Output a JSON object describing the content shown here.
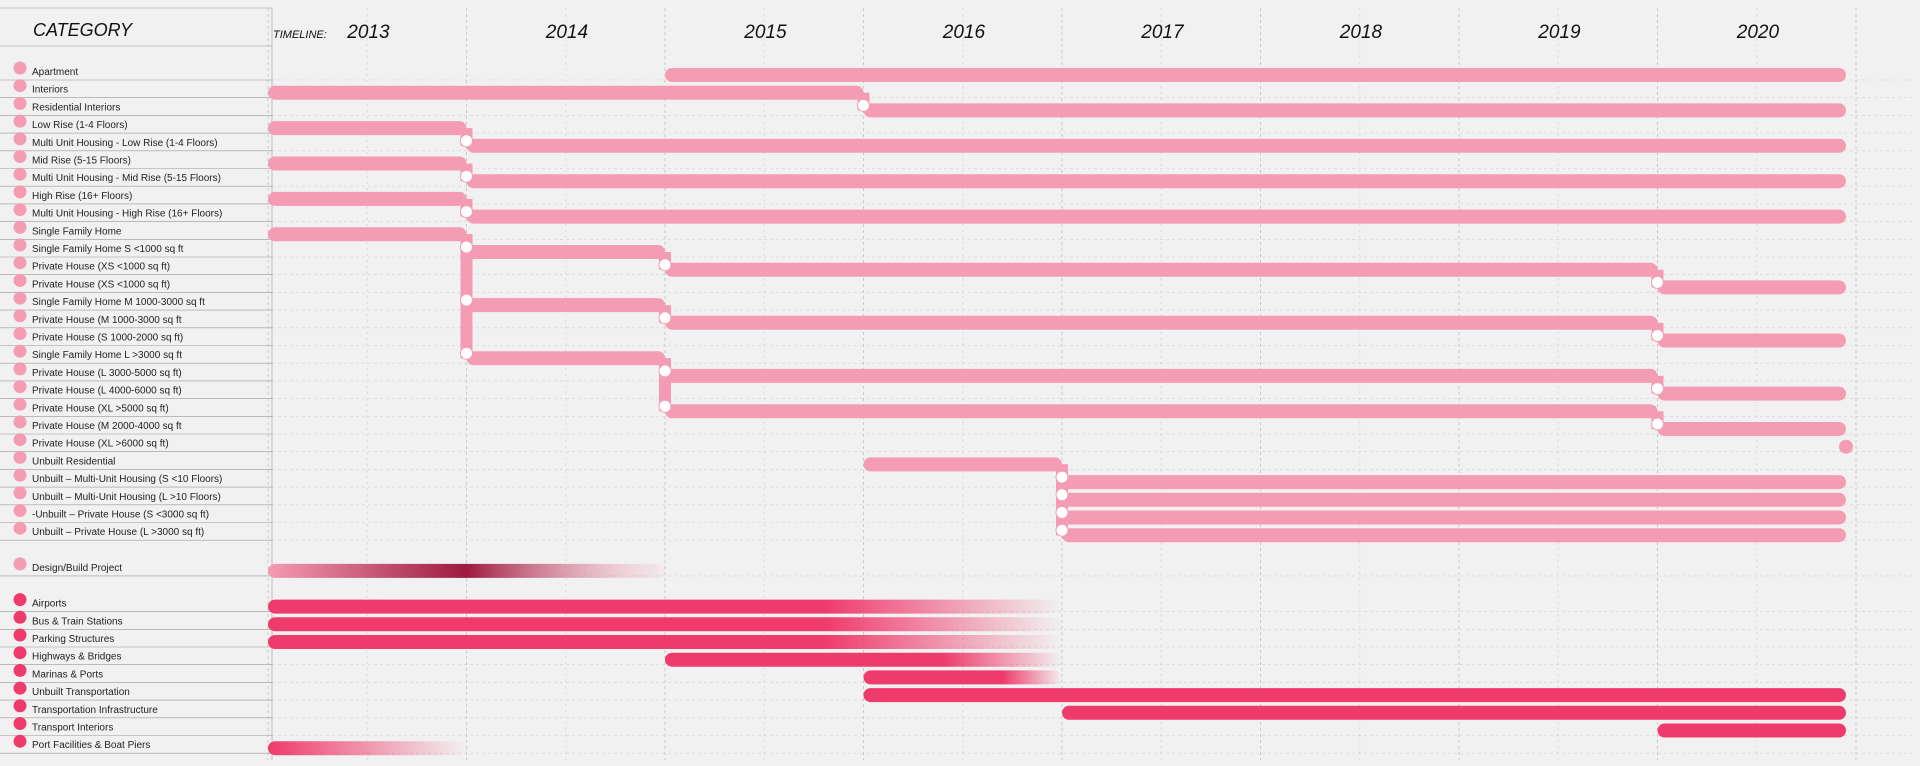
{
  "header": {
    "category_label": "CATEGORY",
    "timeline_label": "TIMELINE:"
  },
  "colors": {
    "residential": "#f49cb3",
    "design_build_dark": "#9e1a40",
    "transport": "#ef3b6c",
    "background": "#f1f1f1",
    "node": "#ffffff"
  },
  "chart_data": {
    "type": "timeline",
    "title": "",
    "x_axis": {
      "type": "year",
      "range": [
        2013,
        2021
      ]
    },
    "years": [
      "2013",
      "2014",
      "2015",
      "2016",
      "2017",
      "2018",
      "2019",
      "2020"
    ],
    "grid": true,
    "categories": [
      {
        "label": "Apartment",
        "group": "residential",
        "bars": [
          [
            2015,
            2021
          ]
        ]
      },
      {
        "label": "Interiors",
        "group": "residential",
        "bars": [
          [
            2013,
            2016
          ]
        ]
      },
      {
        "label": "Residential Interiors",
        "group": "residential",
        "bars": [
          [
            2016,
            2021
          ]
        ]
      },
      {
        "label": "Low Rise (1-4 Floors)",
        "group": "residential",
        "bars": [
          [
            2013,
            2014
          ]
        ]
      },
      {
        "label": "Multi Unit Housing - Low Rise (1-4 Floors)",
        "group": "residential",
        "bars": [
          [
            2014,
            2021
          ]
        ]
      },
      {
        "label": "Mid Rise (5-15 Floors)",
        "group": "residential",
        "bars": [
          [
            2013,
            2014
          ]
        ]
      },
      {
        "label": "Multi Unit Housing - Mid Rise (5-15 Floors)",
        "group": "residential",
        "bars": [
          [
            2014,
            2021
          ]
        ]
      },
      {
        "label": "High Rise (16+ Floors)",
        "group": "residential",
        "bars": [
          [
            2013,
            2014
          ]
        ]
      },
      {
        "label": "Multi Unit Housing - High Rise (16+ Floors)",
        "group": "residential",
        "bars": [
          [
            2014,
            2021
          ]
        ]
      },
      {
        "label": "Single Family Home",
        "group": "residential",
        "bars": [
          [
            2013,
            2014
          ]
        ]
      },
      {
        "label": "Single Family Home S <1000 sq ft",
        "group": "residential",
        "bars": [
          [
            2014,
            2015
          ]
        ]
      },
      {
        "label": "Private House (XS <1000 sq ft)",
        "group": "residential",
        "bars": [
          [
            2015,
            2020
          ]
        ]
      },
      {
        "label": " Private House (XS <1000 sq ft)",
        "group": "residential",
        "bars": [
          [
            2020,
            2021
          ]
        ]
      },
      {
        "label": "Single Family Home M 1000-3000 sq ft",
        "group": "residential",
        "bars": [
          [
            2014,
            2015
          ]
        ]
      },
      {
        "label": "Private House (M 1000-3000 sq ft",
        "group": "residential",
        "bars": [
          [
            2015,
            2020
          ]
        ]
      },
      {
        "label": "Private House (S 1000-2000 sq ft)",
        "group": "residential",
        "bars": [
          [
            2020,
            2021
          ]
        ]
      },
      {
        "label": "Single Family Home L >3000 sq ft",
        "group": "residential",
        "bars": [
          [
            2014,
            2015
          ]
        ]
      },
      {
        "label": "Private House (L 3000-5000 sq ft)",
        "group": "residential",
        "bars": [
          [
            2015,
            2020
          ]
        ]
      },
      {
        "label": "Private House (L 4000-6000 sq ft)",
        "group": "residential",
        "bars": [
          [
            2020,
            2021
          ]
        ]
      },
      {
        "label": "Private House (XL >5000 sq ft)",
        "group": "residential",
        "bars": [
          [
            2015,
            2020
          ]
        ]
      },
      {
        "label": "Private House (M 2000-4000 sq ft",
        "group": "residential",
        "bars": [
          [
            2020,
            2021
          ]
        ]
      },
      {
        "label": "Private House (XL >6000 sq ft)",
        "group": "residential",
        "bars": [
          [
            2021,
            2021
          ]
        ]
      },
      {
        "label": "Unbuilt Residential",
        "group": "residential",
        "bars": [
          [
            2016,
            2017
          ]
        ]
      },
      {
        "label": "Unbuilt – Multi-Unit Housing (S <10 Floors)",
        "group": "residential",
        "bars": [
          [
            2017,
            2021
          ]
        ]
      },
      {
        "label": "Unbuilt – Multi-Unit Housing (L >10 Floors)",
        "group": "residential",
        "bars": [
          [
            2017,
            2021
          ]
        ]
      },
      {
        "label": "-Unbuilt – Private House (S <3000 sq ft)",
        "group": "residential",
        "bars": [
          [
            2017,
            2021
          ]
        ]
      },
      {
        "label": "Unbuilt – Private House (L >3000 sq ft)",
        "group": "residential",
        "bars": [
          [
            2017,
            2021
          ]
        ]
      },
      {
        "label": "Design/Build Project",
        "group": "design_build",
        "bars": [
          [
            2013,
            2015
          ]
        ]
      },
      {
        "label": "Airports",
        "group": "transport",
        "bars": [
          [
            2013,
            2017
          ]
        ]
      },
      {
        "label": "Bus & Train Stations",
        "group": "transport",
        "bars": [
          [
            2013,
            2017
          ]
        ]
      },
      {
        "label": "Parking Structures",
        "group": "transport",
        "bars": [
          [
            2013,
            2017
          ]
        ]
      },
      {
        "label": "Highways & Bridges",
        "group": "transport",
        "bars": [
          [
            2015,
            2017
          ]
        ]
      },
      {
        "label": "Marinas & Ports",
        "group": "transport",
        "bars": [
          [
            2016,
            2017
          ]
        ]
      },
      {
        "label": "Unbuilt Transportation",
        "group": "transport",
        "bars": [
          [
            2016,
            2021
          ]
        ]
      },
      {
        "label": "Transportation Infrastructure",
        "group": "transport",
        "bars": [
          [
            2017,
            2021
          ]
        ]
      },
      {
        "label": "Transport Interiors",
        "group": "transport",
        "bars": [
          [
            2020,
            2021
          ]
        ]
      },
      {
        "label": "Port Facilities & Boat Piers",
        "group": "transport",
        "bars": [
          [
            2013,
            2014
          ]
        ]
      }
    ],
    "connections": [
      {
        "from": "Interiors",
        "to": "Residential Interiors",
        "year": 2016
      },
      {
        "from": "Low Rise (1-4 Floors)",
        "to": "Multi Unit Housing - Low Rise (1-4 Floors)",
        "year": 2014
      },
      {
        "from": "Mid Rise (5-15 Floors)",
        "to": "Multi Unit Housing - Mid Rise (5-15 Floors)",
        "year": 2014
      },
      {
        "from": "High Rise (16+ Floors)",
        "to": "Multi Unit Housing - High Rise (16+ Floors)",
        "year": 2014
      },
      {
        "from": "Single Family Home",
        "to": "Single Family Home S <1000 sq ft",
        "year": 2014
      },
      {
        "from": "Single Family Home",
        "to": "Single Family Home M 1000-3000 sq ft",
        "year": 2014
      },
      {
        "from": "Single Family Home",
        "to": "Single Family Home L >3000 sq ft",
        "year": 2014
      },
      {
        "from": "Single Family Home S <1000 sq ft",
        "to": "Private House (XS <1000 sq ft)",
        "year": 2015
      },
      {
        "from": "Single Family Home M 1000-3000 sq ft",
        "to": "Private House (M 1000-3000 sq ft",
        "year": 2015
      },
      {
        "from": "Single Family Home L >3000 sq ft",
        "to": "Private House (L 3000-5000 sq ft)",
        "year": 2015
      },
      {
        "from": "Single Family Home L >3000 sq ft",
        "to": "Private House (XL >5000 sq ft)",
        "year": 2015
      },
      {
        "from": "Private House (XS <1000 sq ft)",
        "to": " Private House (XS <1000 sq ft)",
        "year": 2020
      },
      {
        "from": "Private House (M 1000-3000 sq ft",
        "to": "Private House (S 1000-2000 sq ft)",
        "year": 2020
      },
      {
        "from": "Private House (L 3000-5000 sq ft)",
        "to": "Private House (L 4000-6000 sq ft)",
        "year": 2020
      },
      {
        "from": "Private House (XL >5000 sq ft)",
        "to": "Private House (M 2000-4000 sq ft",
        "year": 2020
      },
      {
        "from": "Unbuilt Residential",
        "to": "Unbuilt – Multi-Unit Housing (S <10 Floors)",
        "year": 2017
      },
      {
        "from": "Unbuilt Residential",
        "to": "Unbuilt – Multi-Unit Housing (L >10 Floors)",
        "year": 2017
      },
      {
        "from": "Unbuilt Residential",
        "to": "-Unbuilt – Private House (S <3000 sq ft)",
        "year": 2017
      },
      {
        "from": "Unbuilt Residential",
        "to": "Unbuilt – Private House (L >3000 sq ft)",
        "year": 2017
      }
    ]
  }
}
